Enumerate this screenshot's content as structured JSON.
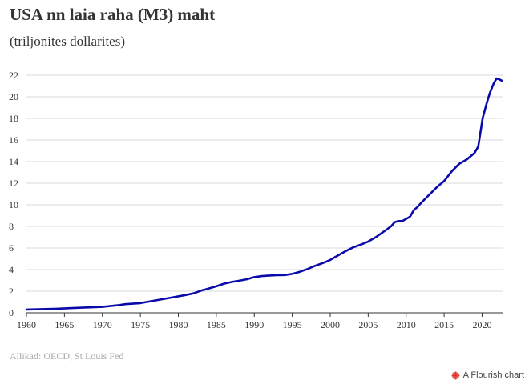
{
  "title": "USA nn laia raha (M3) maht",
  "subtitle": "(triljonites dollarites)",
  "source": "Allikad: OECD, St Louis Fed",
  "brand": {
    "label": "A Flourish chart",
    "icon": "flourish-star-icon",
    "icon_color": "#e0312c"
  },
  "chart_data": {
    "type": "line",
    "title": "USA nn laia raha (M3) maht",
    "subtitle": "(triljonites dollarites)",
    "xlabel": "",
    "ylabel": "",
    "xlim": [
      1960,
      2022.8
    ],
    "ylim": [
      0,
      22
    ],
    "x_ticks": [
      1960,
      1965,
      1970,
      1975,
      1980,
      1985,
      1990,
      1995,
      2000,
      2005,
      2010,
      2015,
      2020
    ],
    "y_ticks": [
      0,
      2,
      4,
      6,
      8,
      10,
      12,
      14,
      16,
      18,
      20,
      22
    ],
    "grid": "horizontal",
    "line_color": "#0a0aaa",
    "series": [
      {
        "x": [
          1960,
          1962,
          1964,
          1966,
          1968,
          1970,
          1972,
          1973,
          1975,
          1977,
          1979,
          1981,
          1982,
          1983,
          1984,
          1985,
          1986,
          1987,
          1988,
          1989,
          1990,
          1991,
          1992,
          1993,
          1994,
          1995,
          1996,
          1997,
          1998,
          1999,
          2000,
          2001,
          2002,
          2003,
          2004,
          2005,
          2006,
          2007,
          2008,
          2008.5,
          2009,
          2009.5,
          2010,
          2010.5,
          2011,
          2011.5,
          2012,
          2013,
          2014,
          2015,
          2016,
          2017,
          2018,
          2019,
          2019.5,
          2020,
          2020.1,
          2020.3,
          2020.6,
          2021,
          2021.5,
          2021.9,
          2022.3,
          2022.6
        ],
        "values": [
          0.3,
          0.34,
          0.38,
          0.44,
          0.5,
          0.55,
          0.7,
          0.8,
          0.9,
          1.15,
          1.4,
          1.65,
          1.8,
          2.05,
          2.25,
          2.45,
          2.7,
          2.85,
          2.97,
          3.1,
          3.3,
          3.4,
          3.45,
          3.48,
          3.5,
          3.6,
          3.8,
          4.05,
          4.35,
          4.6,
          4.9,
          5.3,
          5.7,
          6.05,
          6.3,
          6.6,
          7.0,
          7.5,
          8.0,
          8.4,
          8.5,
          8.5,
          8.7,
          8.9,
          9.5,
          9.8,
          10.2,
          10.9,
          11.6,
          12.2,
          13.1,
          13.8,
          14.2,
          14.8,
          15.4,
          17.7,
          18.1,
          18.6,
          19.4,
          20.3,
          21.2,
          21.7,
          21.6,
          21.5
        ]
      }
    ]
  }
}
